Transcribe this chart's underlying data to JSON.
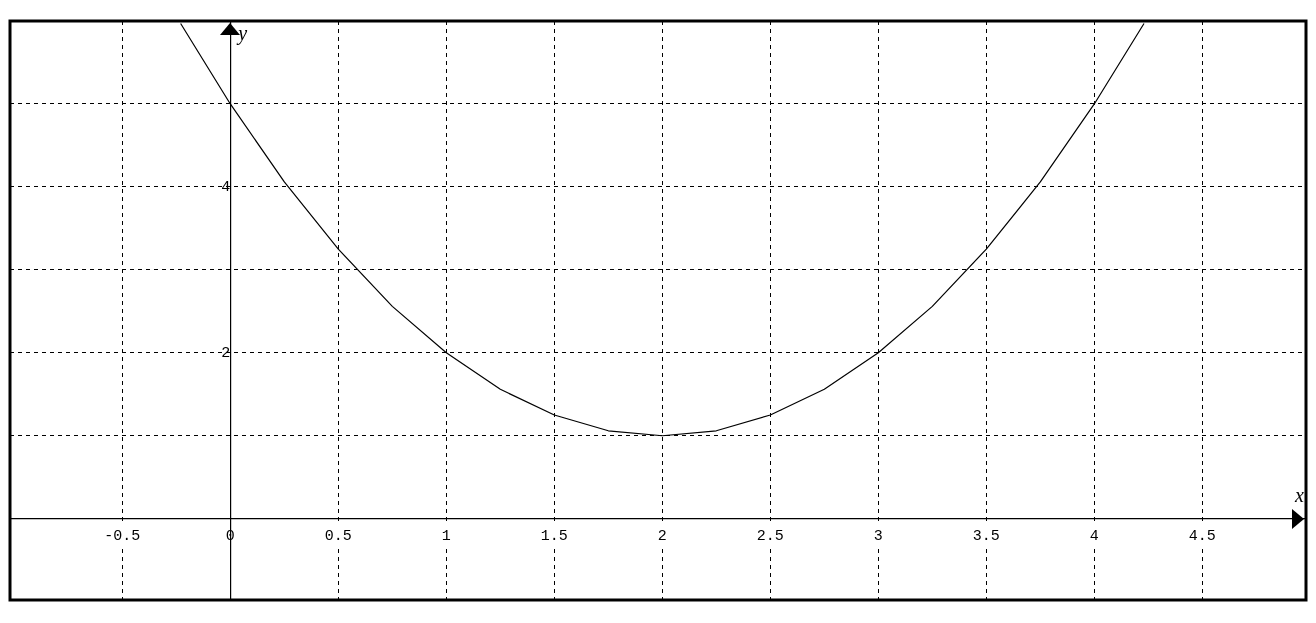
{
  "chart_data": {
    "type": "line",
    "xlabel": "x",
    "ylabel": "y",
    "x": [
      -0.23,
      0,
      0.25,
      0.5,
      0.75,
      1,
      1.25,
      1.5,
      1.75,
      2,
      2.25,
      2.5,
      2.75,
      3,
      3.25,
      3.5,
      3.75,
      4,
      4.23
    ],
    "series": [
      {
        "color": "#000000",
        "values": [
          5.97,
          5,
          4.06,
          3.25,
          2.56,
          2,
          1.56,
          1.25,
          1.06,
          1,
          1.06,
          1.25,
          1.56,
          2,
          2.56,
          3.25,
          4.06,
          5,
          5.97
        ]
      }
    ],
    "xlim": [
      -1.02,
      4.98
    ],
    "ylim": [
      -0.98,
      6.0
    ],
    "xticks": [
      -0.5,
      0,
      0.5,
      1,
      1.5,
      2,
      2.5,
      3,
      3.5,
      4,
      4.5
    ],
    "yticks": [
      {
        "value": 1,
        "label": null
      },
      2,
      {
        "value": 3,
        "label": null
      },
      4,
      {
        "value": 5,
        "label": null
      }
    ],
    "grid": true,
    "legend": false,
    "marker": "none",
    "line_style": "solid"
  }
}
